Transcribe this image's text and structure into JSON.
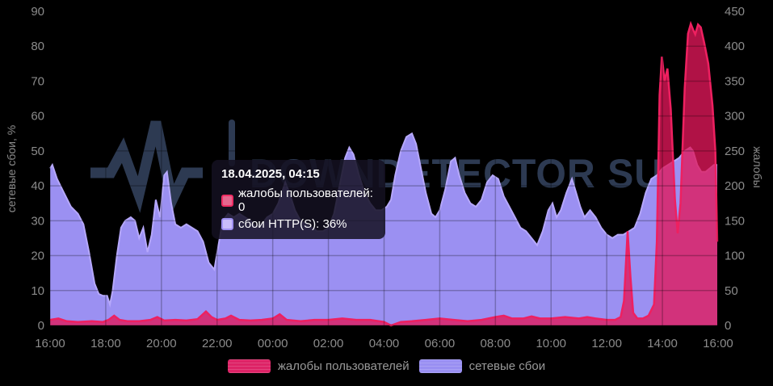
{
  "chart_data": {
    "type": "area",
    "title": "",
    "watermark": {
      "text": "DOWNDETECTOR SU",
      "color": "#2d3a52"
    },
    "x_axis": {
      "labels": [
        "16:00",
        "18:00",
        "20:00",
        "22:00",
        "00:00",
        "02:00",
        "04:00",
        "06:00",
        "08:00",
        "10:00",
        "12:00",
        "14:00",
        "16:00"
      ],
      "span_hours": 24,
      "grid": true
    },
    "left_axis": {
      "title": "сетевые сбои, %",
      "min": 0,
      "max": 90,
      "ticks": [
        0,
        10,
        20,
        30,
        40,
        50,
        60,
        70,
        80,
        90
      ]
    },
    "right_axis": {
      "title": "жалобы",
      "min": 0,
      "max": 450,
      "ticks": [
        0,
        50,
        100,
        150,
        200,
        250,
        300,
        350,
        400,
        450
      ]
    },
    "series": [
      {
        "name": "сетевые сбои",
        "axis": "left",
        "fill_color": "#9b90f2",
        "fill_opacity": 1,
        "line_color": "#b6a8fb",
        "points": [
          [
            0,
            45
          ],
          [
            0.08,
            46
          ],
          [
            0.25,
            42
          ],
          [
            0.5,
            38
          ],
          [
            0.75,
            34
          ],
          [
            1,
            32
          ],
          [
            1.2,
            29
          ],
          [
            1.4,
            21
          ],
          [
            1.6,
            12
          ],
          [
            1.75,
            9
          ],
          [
            1.9,
            8.5
          ],
          [
            2.05,
            8.5
          ],
          [
            2.15,
            6
          ],
          [
            2.25,
            10
          ],
          [
            2.4,
            20
          ],
          [
            2.55,
            28
          ],
          [
            2.7,
            30
          ],
          [
            2.9,
            31
          ],
          [
            3.05,
            30
          ],
          [
            3.2,
            25
          ],
          [
            3.35,
            28
          ],
          [
            3.5,
            21
          ],
          [
            3.65,
            26
          ],
          [
            3.8,
            36
          ],
          [
            3.95,
            31
          ],
          [
            4.1,
            43
          ],
          [
            4.2,
            44
          ],
          [
            4.35,
            35
          ],
          [
            4.5,
            29
          ],
          [
            4.7,
            28
          ],
          [
            4.9,
            29
          ],
          [
            5.1,
            28
          ],
          [
            5.3,
            27
          ],
          [
            5.5,
            24
          ],
          [
            5.7,
            18
          ],
          [
            5.9,
            16
          ],
          [
            6.05,
            23
          ],
          [
            6.2,
            30
          ],
          [
            6.4,
            32
          ],
          [
            6.6,
            31
          ],
          [
            6.8,
            32
          ],
          [
            7,
            31
          ],
          [
            7.2,
            30
          ],
          [
            7.4,
            28
          ],
          [
            7.6,
            29
          ],
          [
            7.8,
            31
          ],
          [
            8,
            32
          ],
          [
            8.2,
            35
          ],
          [
            8.45,
            41
          ],
          [
            8.6,
            38
          ],
          [
            8.8,
            33
          ],
          [
            9,
            30
          ],
          [
            9.2,
            29
          ],
          [
            9.4,
            28
          ],
          [
            9.6,
            27
          ],
          [
            9.8,
            27
          ],
          [
            10,
            28
          ],
          [
            10.2,
            32
          ],
          [
            10.4,
            40
          ],
          [
            10.6,
            48
          ],
          [
            10.75,
            51
          ],
          [
            10.9,
            49
          ],
          [
            11.1,
            43
          ],
          [
            11.3,
            38
          ],
          [
            11.5,
            35
          ],
          [
            11.7,
            33
          ],
          [
            11.9,
            33
          ],
          [
            12.1,
            34
          ],
          [
            12.25,
            36
          ],
          [
            12.4,
            43
          ],
          [
            12.6,
            50
          ],
          [
            12.8,
            54
          ],
          [
            13,
            55
          ],
          [
            13.15,
            52
          ],
          [
            13.3,
            46
          ],
          [
            13.5,
            38
          ],
          [
            13.7,
            32
          ],
          [
            13.85,
            31
          ],
          [
            14,
            33
          ],
          [
            14.2,
            39
          ],
          [
            14.4,
            47
          ],
          [
            14.55,
            48
          ],
          [
            14.7,
            43
          ],
          [
            14.9,
            38
          ],
          [
            15.1,
            35
          ],
          [
            15.3,
            34
          ],
          [
            15.5,
            36
          ],
          [
            15.7,
            41
          ],
          [
            15.9,
            43
          ],
          [
            16.1,
            42
          ],
          [
            16.3,
            37
          ],
          [
            16.5,
            34
          ],
          [
            16.7,
            31
          ],
          [
            16.9,
            28
          ],
          [
            17.1,
            27
          ],
          [
            17.3,
            25
          ],
          [
            17.5,
            23
          ],
          [
            17.7,
            27
          ],
          [
            17.9,
            33
          ],
          [
            18.05,
            35
          ],
          [
            18.2,
            31
          ],
          [
            18.35,
            33
          ],
          [
            18.55,
            38
          ],
          [
            18.75,
            42
          ],
          [
            18.9,
            38
          ],
          [
            19.05,
            34
          ],
          [
            19.2,
            31
          ],
          [
            19.4,
            33
          ],
          [
            19.6,
            31
          ],
          [
            19.8,
            28
          ],
          [
            20,
            26
          ],
          [
            20.2,
            25
          ],
          [
            20.4,
            26
          ],
          [
            20.6,
            26
          ],
          [
            20.8,
            27
          ],
          [
            21,
            28
          ],
          [
            21.2,
            32
          ],
          [
            21.4,
            38
          ],
          [
            21.6,
            42
          ],
          [
            21.8,
            43
          ],
          [
            22,
            45
          ],
          [
            22.2,
            46
          ],
          [
            22.4,
            47
          ],
          [
            22.6,
            48
          ],
          [
            22.8,
            50
          ],
          [
            23,
            51
          ],
          [
            23.1,
            50
          ],
          [
            23.25,
            46
          ],
          [
            23.4,
            44
          ],
          [
            23.55,
            44
          ],
          [
            23.7,
            45
          ],
          [
            23.85,
            46
          ],
          [
            23.97,
            46
          ]
        ]
      },
      {
        "name": "жалобы пользователей",
        "axis": "right",
        "fill_color": "#e2175a",
        "fill_opacity": 0.78,
        "line_color": "#ee2060",
        "points": [
          [
            0,
            8
          ],
          [
            0.3,
            10
          ],
          [
            0.6,
            6
          ],
          [
            1,
            5
          ],
          [
            1.5,
            6
          ],
          [
            1.9,
            5
          ],
          [
            2.1,
            8
          ],
          [
            2.3,
            14
          ],
          [
            2.5,
            8
          ],
          [
            2.8,
            6
          ],
          [
            3.2,
            6
          ],
          [
            3.6,
            8
          ],
          [
            3.85,
            12
          ],
          [
            4.1,
            7
          ],
          [
            4.5,
            8
          ],
          [
            4.9,
            7
          ],
          [
            5.3,
            9
          ],
          [
            5.6,
            20
          ],
          [
            5.8,
            12
          ],
          [
            6,
            8
          ],
          [
            6.3,
            10
          ],
          [
            6.5,
            14
          ],
          [
            6.8,
            8
          ],
          [
            7.2,
            7
          ],
          [
            7.6,
            8
          ],
          [
            8,
            10
          ],
          [
            8.25,
            16
          ],
          [
            8.5,
            8
          ],
          [
            9,
            6
          ],
          [
            9.5,
            8
          ],
          [
            10,
            8
          ],
          [
            10.5,
            10
          ],
          [
            11,
            8
          ],
          [
            11.5,
            8
          ],
          [
            12,
            5
          ],
          [
            12.25,
            0
          ],
          [
            12.6,
            5
          ],
          [
            13,
            6
          ],
          [
            13.5,
            8
          ],
          [
            14,
            10
          ],
          [
            14.5,
            8
          ],
          [
            15,
            6
          ],
          [
            15.5,
            8
          ],
          [
            16,
            12
          ],
          [
            16.3,
            14
          ],
          [
            16.6,
            10
          ],
          [
            17,
            10
          ],
          [
            17.3,
            13
          ],
          [
            17.6,
            10
          ],
          [
            18,
            10
          ],
          [
            18.5,
            12
          ],
          [
            19,
            10
          ],
          [
            19.3,
            12
          ],
          [
            19.6,
            10
          ],
          [
            20,
            8
          ],
          [
            20.3,
            8
          ],
          [
            20.5,
            12
          ],
          [
            20.62,
            35
          ],
          [
            20.75,
            135
          ],
          [
            20.85,
            70
          ],
          [
            20.95,
            18
          ],
          [
            21.1,
            10
          ],
          [
            21.3,
            10
          ],
          [
            21.5,
            14
          ],
          [
            21.7,
            30
          ],
          [
            21.8,
            120
          ],
          [
            21.9,
            330
          ],
          [
            21.98,
            385
          ],
          [
            22.08,
            350
          ],
          [
            22.18,
            368
          ],
          [
            22.3,
            310
          ],
          [
            22.45,
            180
          ],
          [
            22.55,
            132
          ],
          [
            22.65,
            175
          ],
          [
            22.8,
            340
          ],
          [
            22.92,
            418
          ],
          [
            23.02,
            432
          ],
          [
            23.1,
            424
          ],
          [
            23.18,
            417
          ],
          [
            23.28,
            431
          ],
          [
            23.38,
            427
          ],
          [
            23.5,
            405
          ],
          [
            23.65,
            375
          ],
          [
            23.8,
            315
          ],
          [
            23.9,
            250
          ],
          [
            23.97,
            120
          ]
        ]
      }
    ],
    "grid_overlay_color": "rgba(0,0,0,0.25)",
    "tick_label_color": "#8b8b8b"
  },
  "tooltip": {
    "datetime": "18.04.2025, 04:15",
    "rows": [
      {
        "label": "жалобы пользователей",
        "value": "0",
        "text": "жалобы пользователей: 0"
      },
      {
        "label": "сбои HTTP(S)",
        "value": "36%",
        "text": "сбои HTTP(S): 36%"
      }
    ]
  },
  "legend": {
    "items": [
      {
        "label": "жалобы пользователей",
        "color": "#dd2366"
      },
      {
        "label": "сетевые сбои",
        "color": "#998ff2"
      }
    ]
  }
}
